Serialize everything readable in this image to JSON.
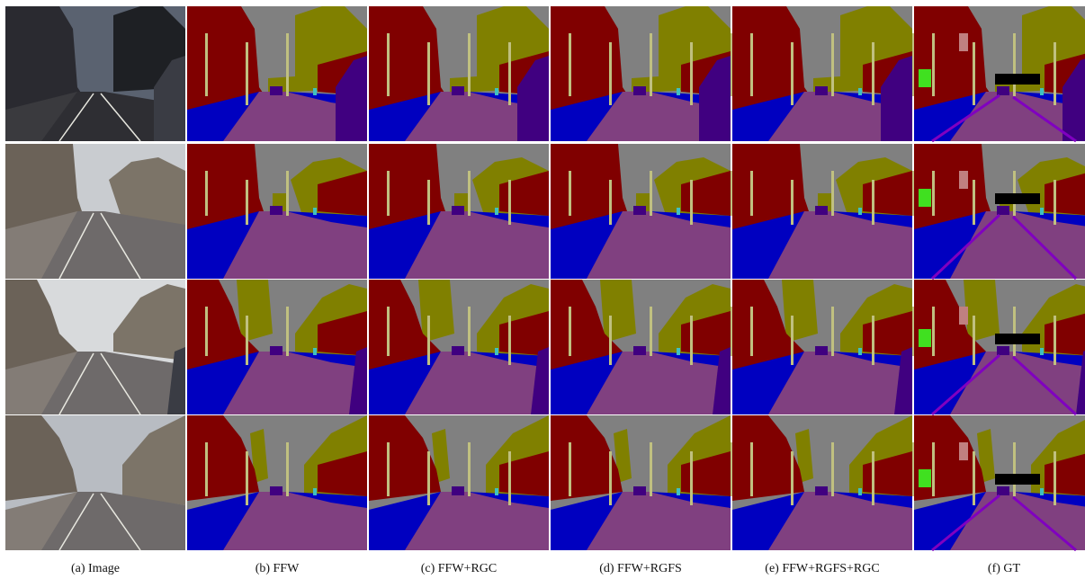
{
  "figure": {
    "columns": [
      {
        "caption": "(a) Image",
        "kind": "photo"
      },
      {
        "caption": "(b) FFW",
        "kind": "segmentation"
      },
      {
        "caption": "(c) FFW+RGC",
        "kind": "segmentation"
      },
      {
        "caption": "(d) FFW+RGFS",
        "kind": "segmentation"
      },
      {
        "caption": "(e) FFW+RGFS+RGC",
        "kind": "segmentation"
      },
      {
        "caption": "(f) GT",
        "kind": "ground-truth"
      }
    ],
    "row_count": 4
  },
  "colors": {
    "sky": "#808080",
    "building": "#800000",
    "tree": "#808000",
    "road": "#804080",
    "sidewalk": "#0000c0",
    "car": "#400080",
    "pole": "#c0c080",
    "sign": "#c08080",
    "fence": "#404080",
    "pedestrian": "#40c0c0",
    "void": "#000000",
    "grass": "#40e020",
    "lane_marking": "#8000c0"
  }
}
